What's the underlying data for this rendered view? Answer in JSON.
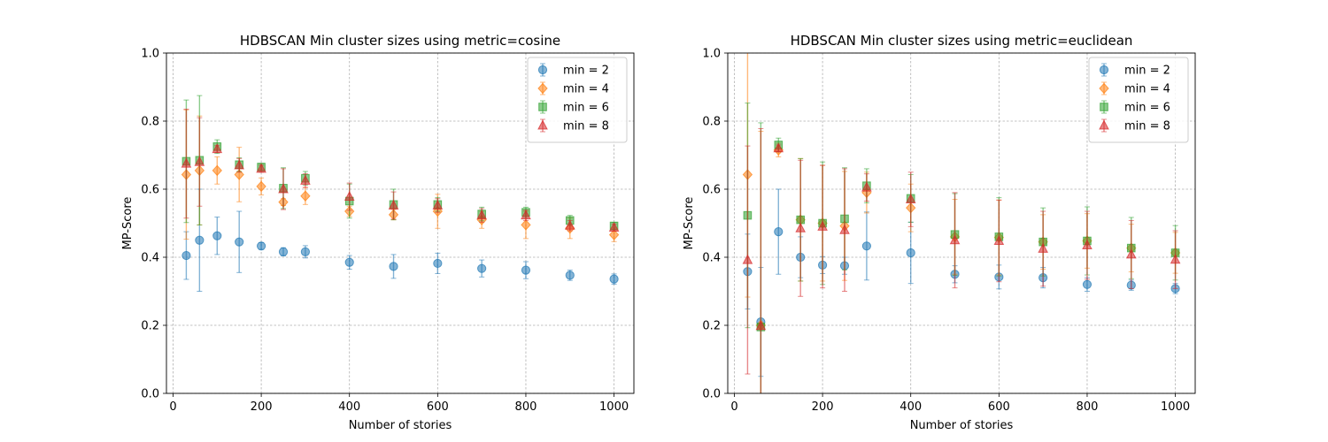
{
  "chart_data": [
    {
      "type": "scatter",
      "title": "HDBSCAN Min cluster sizes using metric=cosine",
      "xlabel": "Number of stories",
      "ylabel": "MP-Score",
      "xlim": [
        -15,
        1045
      ],
      "ylim": [
        0.0,
        1.0
      ],
      "xticks": [
        0,
        200,
        400,
        600,
        800,
        1000
      ],
      "yticks": [
        0.0,
        0.2,
        0.4,
        0.6,
        0.8,
        1.0
      ],
      "xtick_labels": [
        "0",
        "200",
        "400",
        "600",
        "800",
        "1000"
      ],
      "ytick_labels": [
        "0.0",
        "0.2",
        "0.4",
        "0.6",
        "0.8",
        "1.0"
      ],
      "grid": true,
      "legend_position": "top-right",
      "x": [
        30,
        60,
        100,
        150,
        200,
        250,
        300,
        400,
        500,
        600,
        700,
        800,
        900,
        1000
      ],
      "series": [
        {
          "name": "min = 2",
          "marker": "circle",
          "color": "#1f77b4",
          "values": [
            0.405,
            0.45,
            0.463,
            0.445,
            0.433,
            0.416,
            0.416,
            0.385,
            0.373,
            0.382,
            0.367,
            0.362,
            0.347,
            0.336
          ],
          "errors": [
            0.07,
            0.15,
            0.055,
            0.09,
            0.01,
            0.012,
            0.018,
            0.02,
            0.035,
            0.03,
            0.025,
            0.025,
            0.015,
            0.015
          ]
        },
        {
          "name": "min = 4",
          "marker": "diamond",
          "color": "#ff7f0e",
          "values": [
            0.643,
            0.655,
            0.655,
            0.643,
            0.608,
            0.562,
            0.58,
            0.535,
            0.525,
            0.535,
            0.51,
            0.495,
            0.485,
            0.466
          ],
          "errors": [
            0.19,
            0.16,
            0.04,
            0.08,
            0.025,
            0.01,
            0.025,
            0.015,
            0.015,
            0.05,
            0.025,
            0.04,
            0.03,
            0.02
          ]
        },
        {
          "name": "min = 6",
          "marker": "square",
          "color": "#2ca02c",
          "values": [
            0.682,
            0.685,
            0.725,
            0.672,
            0.665,
            0.603,
            0.632,
            0.565,
            0.555,
            0.555,
            0.527,
            0.532,
            0.508,
            0.492
          ],
          "errors": [
            0.18,
            0.19,
            0.02,
            0.02,
            0.01,
            0.06,
            0.02,
            0.05,
            0.045,
            0.02,
            0.02,
            0.015,
            0.015,
            0.01
          ]
        },
        {
          "name": "min = 8",
          "marker": "triangle",
          "color": "#d62728",
          "values": [
            0.675,
            0.68,
            0.718,
            0.67,
            0.66,
            0.6,
            0.625,
            0.578,
            0.552,
            0.552,
            0.523,
            0.523,
            0.493,
            0.487
          ],
          "errors": [
            0.16,
            0.13,
            0.01,
            0.02,
            0.01,
            0.06,
            0.02,
            0.04,
            0.04,
            0.02,
            0.02,
            0.015,
            0.015,
            0.01
          ]
        }
      ]
    },
    {
      "type": "scatter",
      "title": "HDBSCAN Min cluster sizes using metric=euclidean",
      "xlabel": "Number of stories",
      "ylabel": "MP-Score",
      "xlim": [
        -15,
        1045
      ],
      "ylim": [
        0.0,
        1.0
      ],
      "xticks": [
        0,
        200,
        400,
        600,
        800,
        1000
      ],
      "yticks": [
        0.0,
        0.2,
        0.4,
        0.6,
        0.8,
        1.0
      ],
      "xtick_labels": [
        "0",
        "200",
        "400",
        "600",
        "800",
        "1000"
      ],
      "ytick_labels": [
        "0.0",
        "0.2",
        "0.4",
        "0.6",
        "0.8",
        "1.0"
      ],
      "grid": true,
      "legend_position": "top-right",
      "x": [
        30,
        60,
        100,
        150,
        200,
        250,
        300,
        400,
        500,
        600,
        700,
        800,
        900,
        1000
      ],
      "series": [
        {
          "name": "min = 2",
          "marker": "circle",
          "color": "#1f77b4",
          "values": [
            0.358,
            0.21,
            0.475,
            0.4,
            0.377,
            0.375,
            0.433,
            0.413,
            0.35,
            0.342,
            0.34,
            0.32,
            0.318,
            0.308
          ],
          "errors": [
            0.11,
            0.16,
            0.125,
            0.06,
            0.025,
            0.025,
            0.1,
            0.09,
            0.025,
            0.035,
            0.03,
            0.02,
            0.015,
            0.015
          ]
        },
        {
          "name": "min = 4",
          "marker": "diamond",
          "color": "#ff7f0e",
          "values": [
            0.643,
            0.2,
            0.715,
            0.51,
            0.5,
            0.492,
            0.59,
            0.545,
            0.46,
            0.458,
            0.445,
            0.448,
            0.427,
            0.413
          ],
          "errors": [
            0.36,
            0.57,
            0.02,
            0.18,
            0.17,
            0.16,
            0.06,
            0.07,
            0.11,
            0.11,
            0.08,
            0.08,
            0.07,
            0.06
          ]
        },
        {
          "name": "min = 6",
          "marker": "square",
          "color": "#2ca02c",
          "values": [
            0.523,
            0.195,
            0.73,
            0.51,
            0.5,
            0.513,
            0.61,
            0.573,
            0.467,
            0.46,
            0.445,
            0.448,
            0.427,
            0.413
          ],
          "errors": [
            0.33,
            0.6,
            0.02,
            0.18,
            0.18,
            0.15,
            0.05,
            0.07,
            0.12,
            0.115,
            0.1,
            0.1,
            0.09,
            0.08
          ]
        },
        {
          "name": "min = 8",
          "marker": "triangle",
          "color": "#d62728",
          "values": [
            0.392,
            0.198,
            0.72,
            0.485,
            0.49,
            0.48,
            0.605,
            0.57,
            0.45,
            0.448,
            0.425,
            0.435,
            0.408,
            0.393
          ],
          "errors": [
            0.335,
            0.58,
            0.01,
            0.2,
            0.18,
            0.18,
            0.04,
            0.08,
            0.14,
            0.12,
            0.11,
            0.1,
            0.1,
            0.085
          ]
        }
      ]
    }
  ]
}
